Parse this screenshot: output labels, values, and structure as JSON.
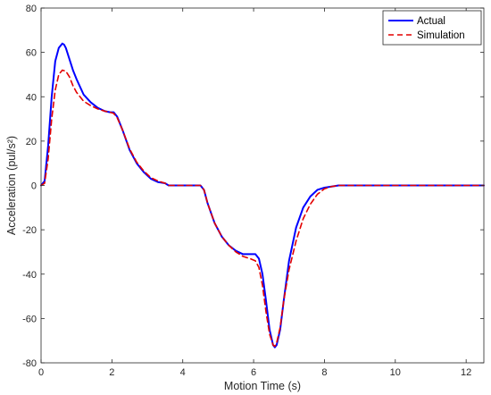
{
  "chart_data": {
    "type": "line",
    "xlabel": "Motion Time (s)",
    "ylabel": "Acceleration (pul/s²)",
    "xlim": [
      0,
      12.5
    ],
    "ylim": [
      -80,
      80
    ],
    "xticks": [
      0,
      2,
      4,
      6,
      8,
      10,
      12
    ],
    "yticks": [
      -80,
      -60,
      -40,
      -20,
      0,
      20,
      40,
      60,
      80
    ],
    "grid": false,
    "legend_position": "top-right",
    "series": [
      {
        "name": "Actual",
        "color": "#0000ff",
        "style": "solid",
        "x": [
          0,
          0.1,
          0.2,
          0.3,
          0.4,
          0.5,
          0.6,
          0.65,
          0.7,
          0.8,
          0.9,
          1.0,
          1.2,
          1.4,
          1.6,
          1.8,
          1.95,
          2.05,
          2.15,
          2.3,
          2.5,
          2.7,
          2.9,
          3.1,
          3.3,
          3.5,
          3.6,
          4.0,
          4.5,
          4.6,
          4.7,
          4.9,
          5.1,
          5.3,
          5.5,
          5.7,
          5.9,
          6.05,
          6.15,
          6.25,
          6.35,
          6.45,
          6.55,
          6.6,
          6.65,
          6.75,
          6.85,
          7.0,
          7.2,
          7.4,
          7.6,
          7.8,
          8.0,
          8.2,
          8.4,
          9,
          10,
          11,
          12,
          12.5
        ],
        "y": [
          0,
          2,
          18,
          40,
          56,
          62,
          64,
          63.5,
          62,
          57,
          52,
          48,
          41,
          37.5,
          35,
          33.5,
          33,
          33,
          31,
          25,
          16,
          10,
          6,
          3,
          1.5,
          1,
          0,
          0,
          0,
          -2,
          -8,
          -17,
          -23,
          -27,
          -29.5,
          -31,
          -31,
          -31,
          -33,
          -40,
          -52,
          -65,
          -72,
          -73,
          -72,
          -65,
          -52,
          -34,
          -19,
          -10,
          -5,
          -2,
          -1,
          -0.5,
          0,
          0,
          0,
          0,
          0,
          0
        ]
      },
      {
        "name": "Simulation",
        "color": "#e30000",
        "style": "dashed",
        "x": [
          0,
          0.1,
          0.2,
          0.3,
          0.4,
          0.5,
          0.6,
          0.7,
          0.8,
          0.9,
          1.0,
          1.2,
          1.4,
          1.6,
          1.8,
          1.95,
          2.05,
          2.15,
          2.3,
          2.5,
          2.7,
          2.9,
          3.1,
          3.3,
          3.5,
          3.6,
          4.0,
          4.5,
          4.6,
          4.7,
          4.9,
          5.1,
          5.3,
          5.5,
          5.7,
          5.9,
          6.05,
          6.15,
          6.25,
          6.35,
          6.45,
          6.55,
          6.6,
          6.65,
          6.75,
          6.85,
          7.0,
          7.2,
          7.4,
          7.6,
          7.8,
          8.0,
          8.2,
          8.4,
          9,
          10,
          11,
          12,
          12.5
        ],
        "y": [
          0,
          1,
          12,
          30,
          43,
          50,
          52,
          51.5,
          49,
          45,
          42,
          38,
          36,
          34.5,
          33.5,
          33,
          32.5,
          30.5,
          25,
          16.5,
          10.5,
          6.5,
          3.5,
          2,
          1,
          0,
          0,
          0,
          -2,
          -8,
          -17,
          -23,
          -27,
          -30,
          -32,
          -33,
          -34,
          -37,
          -45,
          -57,
          -67,
          -72,
          -72.5,
          -71,
          -64,
          -52,
          -38,
          -25,
          -15,
          -8.5,
          -4,
          -1.5,
          -0.5,
          0,
          0,
          0,
          0,
          0,
          0
        ]
      }
    ]
  }
}
